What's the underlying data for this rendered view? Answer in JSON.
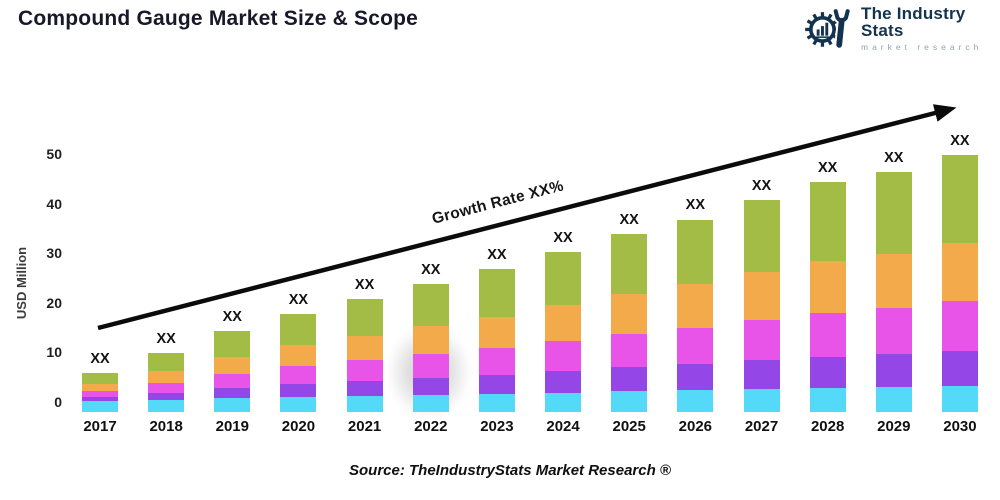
{
  "header": {
    "title": "Compound Gauge Market Size & Scope"
  },
  "logo": {
    "name": "The Industry Stats",
    "tagline": "market research",
    "navy": "#14334e",
    "tagline_color": "#8fa3b8",
    "mark_icon": "gear-bars-wrench"
  },
  "chart_data": {
    "type": "bar",
    "stacked": true,
    "title": "Compound Gauge Market Size & Scope",
    "xlabel": "",
    "ylabel": "USD Million",
    "ylim": [
      0,
      50
    ],
    "yticks": [
      0,
      10,
      20,
      30,
      40,
      50
    ],
    "grid": false,
    "legend": "none",
    "categories": [
      "2017",
      "2018",
      "2019",
      "2020",
      "2021",
      "2022",
      "2023",
      "2024",
      "2025",
      "2026",
      "2027",
      "2028",
      "2029",
      "2030"
    ],
    "bar_value_labels": [
      "XX",
      "XX",
      "XX",
      "XX",
      "XX",
      "XX",
      "XX",
      "XX",
      "XX",
      "XX",
      "XX",
      "XX",
      "XX",
      "XX"
    ],
    "totals_estimated_usd_million": [
      6,
      10,
      14.5,
      18,
      21,
      24,
      27,
      30.5,
      34,
      37,
      41,
      44.5,
      46.5,
      50
    ],
    "series_note": "stack order bottom to top; values estimated from pixels, labels shown as XX",
    "series": [
      {
        "name": "segment-cyan",
        "color": "#55d9f8",
        "values": [
          0.4,
          0.7,
          1.0,
          1.3,
          1.5,
          1.7,
          1.9,
          2.1,
          2.4,
          2.6,
          2.9,
          3.1,
          3.3,
          3.5
        ]
      },
      {
        "name": "segment-purple",
        "color": "#9447e6",
        "values": [
          0.8,
          1.4,
          2.0,
          2.5,
          2.9,
          3.4,
          3.8,
          4.3,
          4.8,
          5.2,
          5.7,
          6.2,
          6.5,
          7.0
        ]
      },
      {
        "name": "segment-magenta",
        "color": "#e854e8",
        "values": [
          1.2,
          2.0,
          2.9,
          3.6,
          4.2,
          4.8,
          5.4,
          6.1,
          6.8,
          7.4,
          8.2,
          8.9,
          9.3,
          10.0
        ]
      },
      {
        "name": "segment-orange",
        "color": "#f3aa4b",
        "values": [
          1.4,
          2.4,
          3.4,
          4.2,
          4.9,
          5.6,
          6.3,
          7.2,
          8.0,
          8.7,
          9.6,
          10.5,
          10.9,
          11.8
        ]
      },
      {
        "name": "segment-green",
        "color": "#a3bc45",
        "values": [
          2.2,
          3.5,
          5.2,
          6.4,
          7.5,
          8.5,
          9.6,
          10.8,
          12.0,
          13.1,
          14.6,
          15.8,
          16.5,
          17.7
        ]
      }
    ],
    "annotations": {
      "growth_label": "Growth Rate XX%",
      "arrow": "black growth arrow lower-left to upper-right"
    }
  },
  "footer": {
    "source": "Source: TheIndustryStats Market Research ®"
  }
}
